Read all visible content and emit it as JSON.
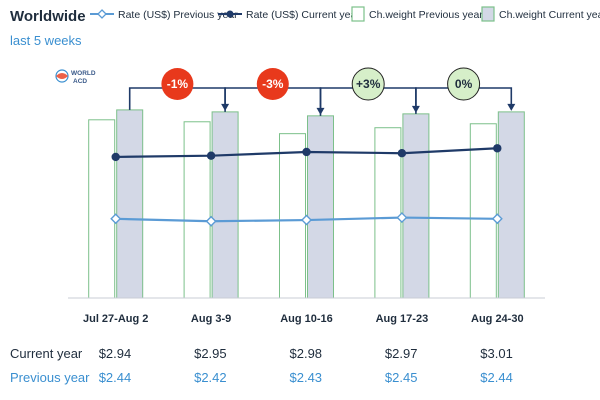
{
  "chart_data": {
    "type": "bar",
    "title": "Worldwide",
    "subtitle": "last 5 weeks",
    "categories": [
      "Jul 27-Aug 2",
      "Aug 3-9",
      "Aug 10-16",
      "Aug 17-23",
      "Aug 24-30"
    ],
    "bar_series": [
      {
        "name": "Ch.weight Previous year",
        "values": [
          0.9,
          0.89,
          0.83,
          0.86,
          0.88
        ]
      },
      {
        "name": "Ch.weight Current year",
        "values": [
          0.95,
          0.94,
          0.92,
          0.93,
          0.94
        ]
      }
    ],
    "line_series": [
      {
        "name": "Rate (US$) Previous year",
        "values": [
          2.44,
          2.42,
          2.43,
          2.45,
          2.44
        ],
        "labels": [
          "$2.44",
          "$2.42",
          "$2.43",
          "$2.45",
          "$2.44"
        ]
      },
      {
        "name": "Rate (US$) Current year",
        "values": [
          2.94,
          2.95,
          2.98,
          2.97,
          3.01
        ],
        "labels": [
          "$2.94",
          "$2.95",
          "$2.98",
          "$2.97",
          "$3.01"
        ]
      }
    ],
    "changes": [
      "-1%",
      "-3%",
      "+3%",
      "0%"
    ],
    "table_rows": [
      "Current year",
      "Previous year"
    ],
    "logo_text": [
      "WORLD",
      "ACD"
    ],
    "colors": {
      "bar_prev_fill": "#ffffff",
      "bar_prev_stroke": "#7cc08a",
      "bar_curr_fill": "#d3d8e6",
      "bar_curr_stroke": "#7cc08a",
      "line_prev": "#5b9bd5",
      "line_curr": "#1f3a68",
      "badge_neg": "#e8391c",
      "badge_pos": "#d6efc9",
      "arrow": "#1f3a68",
      "row_curr": "#1f2d3d",
      "row_prev": "#3a8fd0"
    },
    "legend_position": "top",
    "grid": false
  }
}
